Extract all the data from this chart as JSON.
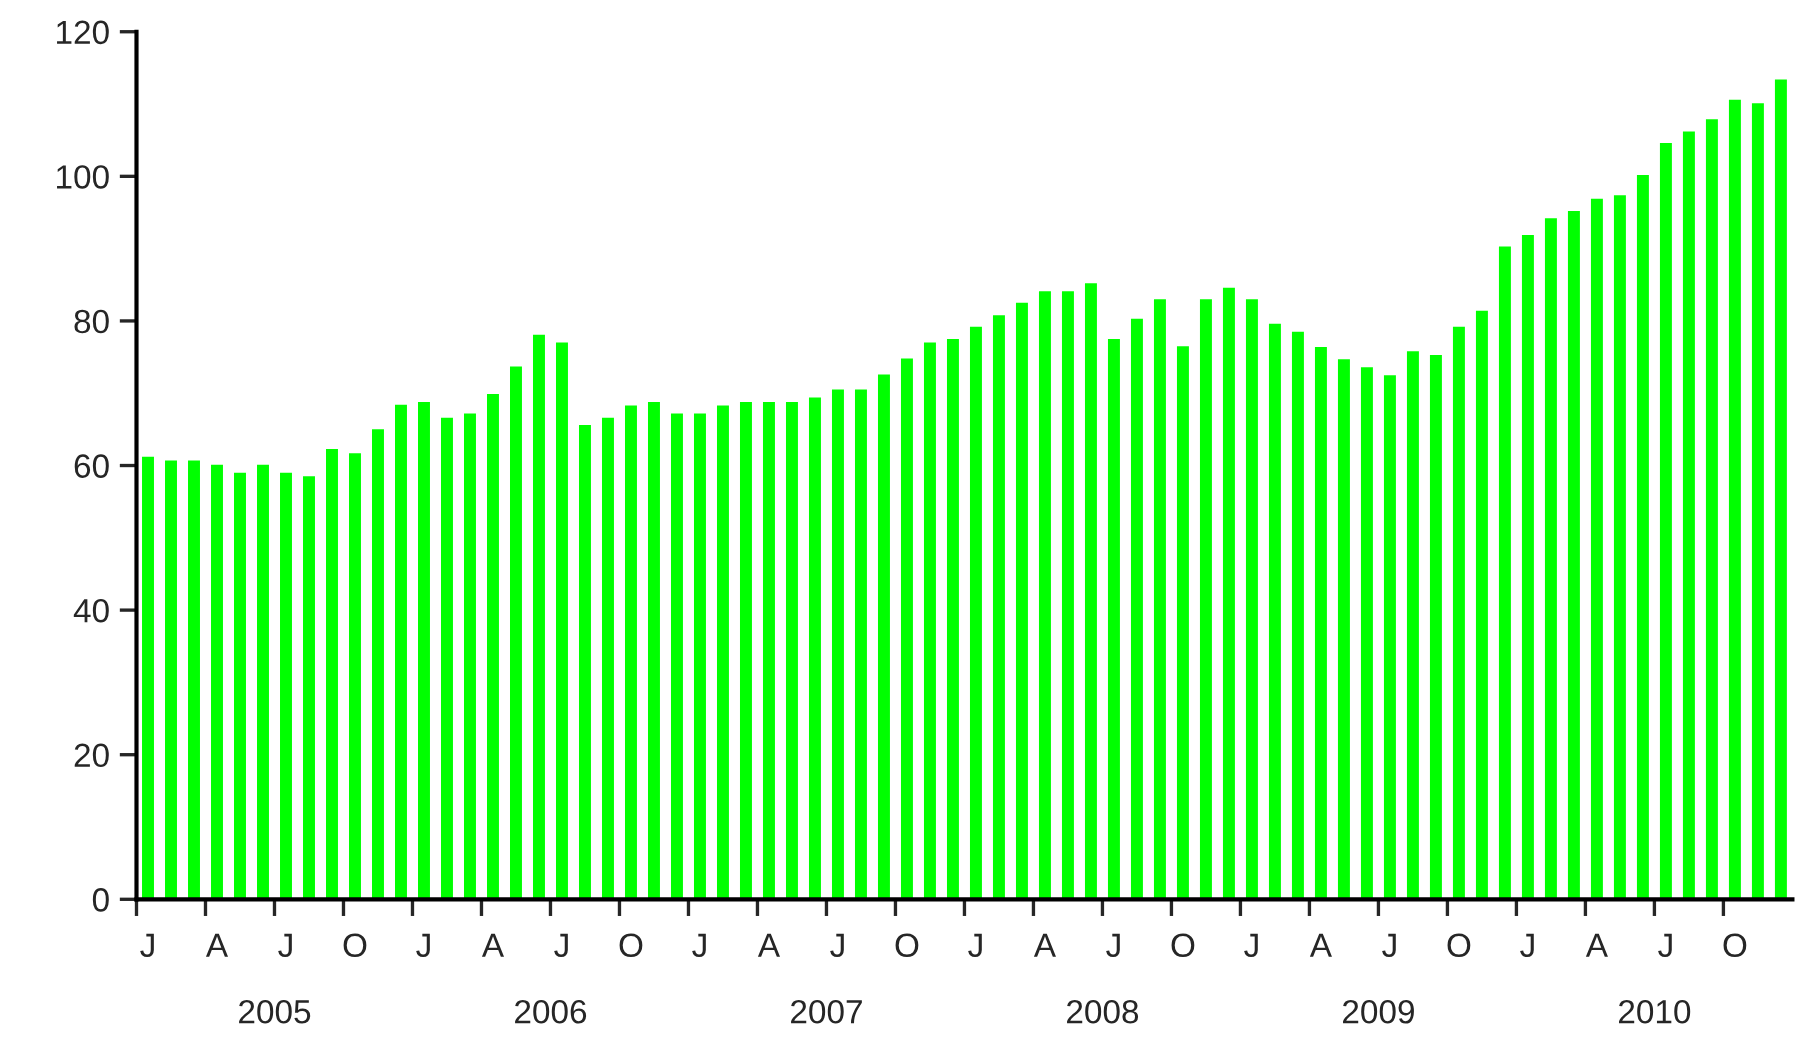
{
  "chart_data": {
    "type": "bar",
    "categories": [
      "J",
      null,
      null,
      "A",
      null,
      null,
      "J",
      null,
      null,
      "O",
      null,
      null,
      "J",
      null,
      null,
      "A",
      null,
      null,
      "J",
      null,
      null,
      "O",
      null,
      null,
      "J",
      null,
      null,
      "A",
      null,
      null,
      "J",
      null,
      null,
      "O",
      null,
      null,
      "J",
      null,
      null,
      "A",
      null,
      null,
      "J",
      null,
      null,
      "O",
      null,
      null,
      "J",
      null,
      null,
      "A",
      null,
      null,
      "J",
      null,
      null,
      "O",
      null,
      null,
      "J",
      null,
      null,
      "A",
      null,
      null,
      "J",
      null,
      null,
      "O",
      null,
      null
    ],
    "values": [
      61.2,
      60.7,
      60.7,
      60.1,
      59.0,
      60.1,
      59.0,
      58.5,
      62.3,
      61.7,
      65.0,
      68.4,
      68.8,
      66.6,
      67.2,
      69.9,
      73.7,
      78.1,
      77.0,
      65.6,
      66.6,
      68.3,
      68.8,
      67.2,
      67.2,
      68.3,
      68.8,
      68.8,
      68.8,
      69.4,
      70.5,
      70.5,
      72.6,
      74.8,
      77.0,
      77.5,
      79.2,
      80.8,
      82.5,
      84.1,
      84.1,
      85.2,
      77.5,
      80.3,
      83.0,
      76.5,
      83.0,
      84.6,
      83.0,
      79.6,
      78.5,
      76.4,
      74.7,
      73.6,
      72.5,
      75.8,
      75.3,
      79.2,
      81.4,
      90.3,
      91.9,
      94.2,
      95.2,
      96.9,
      97.4,
      100.2,
      104.6,
      106.2,
      107.9,
      110.6,
      110.1,
      113.4
    ],
    "color": "#00ff00",
    "ylim": [
      0,
      120
    ],
    "yticks": [
      0,
      20,
      40,
      60,
      80,
      100,
      120
    ],
    "annotations": [
      "2005",
      "2006",
      "2007",
      "2008",
      "2009",
      "2010"
    ],
    "grid": false,
    "legend": false
  }
}
